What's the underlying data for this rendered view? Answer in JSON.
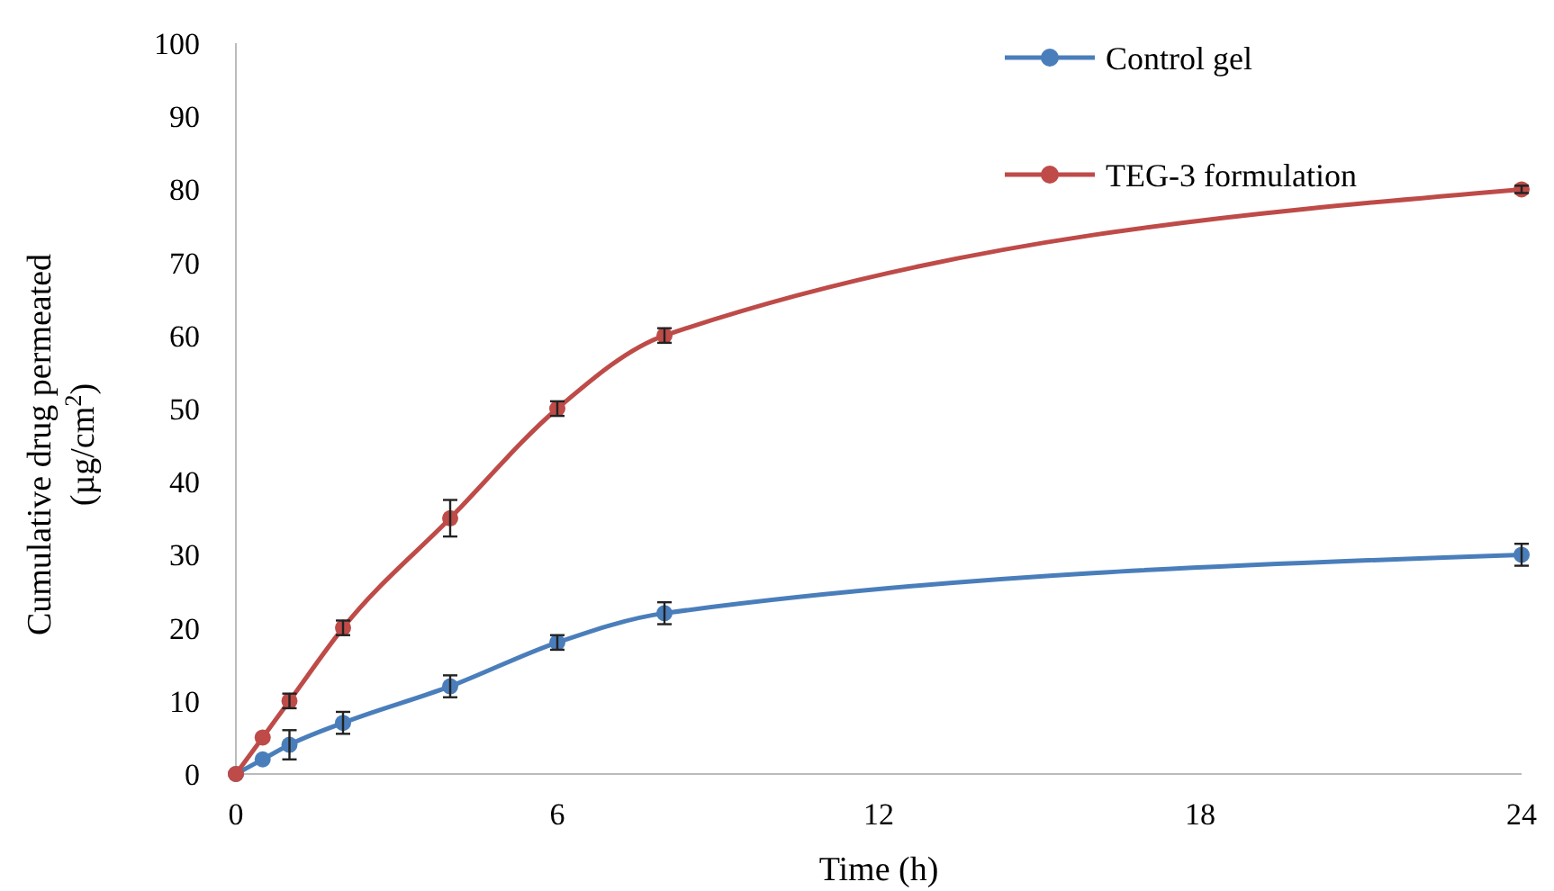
{
  "chart_data": {
    "type": "line",
    "xlabel": "Time (h)",
    "ylabel": "Cumulative drug permeated\n(µg/cm$^{2}$)",
    "x": [
      0,
      0.5,
      1,
      2,
      4,
      6,
      8,
      24
    ],
    "xlim": [
      0,
      24
    ],
    "xticks": [
      0,
      6,
      12,
      18,
      24
    ],
    "ylim": [
      0,
      100
    ],
    "yticks": [
      0,
      10,
      20,
      30,
      40,
      50,
      60,
      70,
      80,
      90,
      100
    ],
    "grid": false,
    "legend": "top right",
    "marker": "circle",
    "line_style": "solid",
    "series": [
      {
        "name": "Control gel",
        "color": "#4a7ebb",
        "values": [
          0,
          2,
          4,
          7,
          12,
          18,
          22,
          30
        ],
        "errors": [
          null,
          null,
          2,
          1.5,
          1.5,
          1,
          1.5,
          1.5
        ]
      },
      {
        "name": "TEG-3 formulation",
        "color": "#be4b48",
        "values": [
          0,
          5,
          10,
          20,
          35,
          50,
          60,
          80
        ],
        "errors": [
          null,
          null,
          1,
          1,
          2.5,
          1,
          1,
          0.5
        ]
      }
    ]
  }
}
